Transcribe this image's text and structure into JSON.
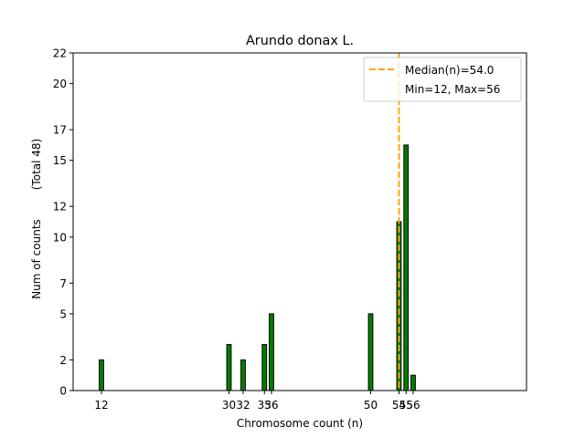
{
  "chart_data": {
    "type": "bar",
    "title": "Arundo donax L.",
    "xlabel": "Chromosome count (n)",
    "ylabel": "Num of counts",
    "ylabel_total": "(Total 48)",
    "xlim": [
      8,
      72
    ],
    "ylim": [
      0,
      22
    ],
    "x": [
      12,
      30,
      32,
      35,
      36,
      50,
      54,
      55,
      56
    ],
    "values": [
      2,
      3,
      2,
      3,
      5,
      5,
      11,
      16,
      1
    ],
    "xticks": [
      12,
      30,
      32,
      35,
      36,
      50,
      54,
      55,
      56
    ],
    "xtick_labels": [
      "12",
      "30",
      "32",
      "35",
      "36",
      "50",
      "54",
      "55",
      "56"
    ],
    "yticks": [
      0,
      2,
      5,
      7,
      10,
      12,
      15,
      17,
      20,
      22
    ],
    "median": 54.0,
    "legend": {
      "position": "top-right",
      "entries": [
        "Median(n)=54.0",
        "Min=12, Max=56"
      ]
    },
    "grid": false,
    "colors": {
      "bar_fill": "#008000",
      "bar_edge": "#000000",
      "median_line": "#ffa500"
    }
  }
}
